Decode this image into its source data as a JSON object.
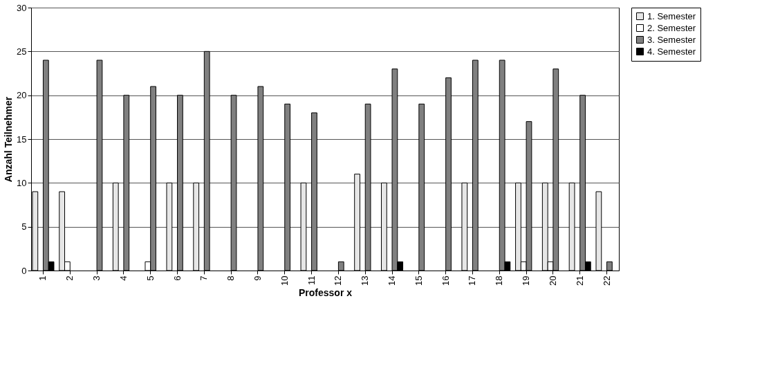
{
  "chart_data": {
    "type": "bar",
    "xlabel": "Professor x",
    "ylabel": "Anzahl Teilnehmer",
    "categories": [
      "1",
      "2",
      "3",
      "4",
      "5",
      "6",
      "7",
      "8",
      "9",
      "10",
      "11",
      "12",
      "13",
      "14",
      "15",
      "16",
      "17",
      "18",
      "19",
      "20",
      "21",
      "22"
    ],
    "series": [
      {
        "name": "1. Semester",
        "color": "#e6e6e6",
        "values": [
          9,
          9,
          null,
          10,
          null,
          10,
          10,
          null,
          null,
          null,
          10,
          null,
          11,
          10,
          null,
          null,
          10,
          null,
          10,
          10,
          10,
          9
        ]
      },
      {
        "name": "2. Semester",
        "color": "#ffffff",
        "values": [
          null,
          1,
          null,
          null,
          1,
          null,
          null,
          null,
          null,
          null,
          null,
          null,
          null,
          null,
          null,
          null,
          null,
          null,
          1,
          1,
          null,
          null
        ]
      },
      {
        "name": "3. Semester",
        "color": "#808080",
        "values": [
          24,
          null,
          24,
          20,
          21,
          20,
          25,
          20,
          21,
          19,
          18,
          1,
          19,
          23,
          19,
          22,
          24,
          24,
          17,
          23,
          20,
          1
        ]
      },
      {
        "name": "4. Semester",
        "color": "#000000",
        "values": [
          1,
          null,
          null,
          null,
          null,
          null,
          null,
          null,
          null,
          null,
          null,
          null,
          null,
          1,
          null,
          null,
          null,
          1,
          null,
          null,
          1,
          null
        ]
      }
    ],
    "ylim": [
      0,
      30
    ],
    "yticks": [
      0,
      5,
      10,
      15,
      20,
      25,
      30
    ],
    "grid": "y",
    "legend": "right"
  }
}
